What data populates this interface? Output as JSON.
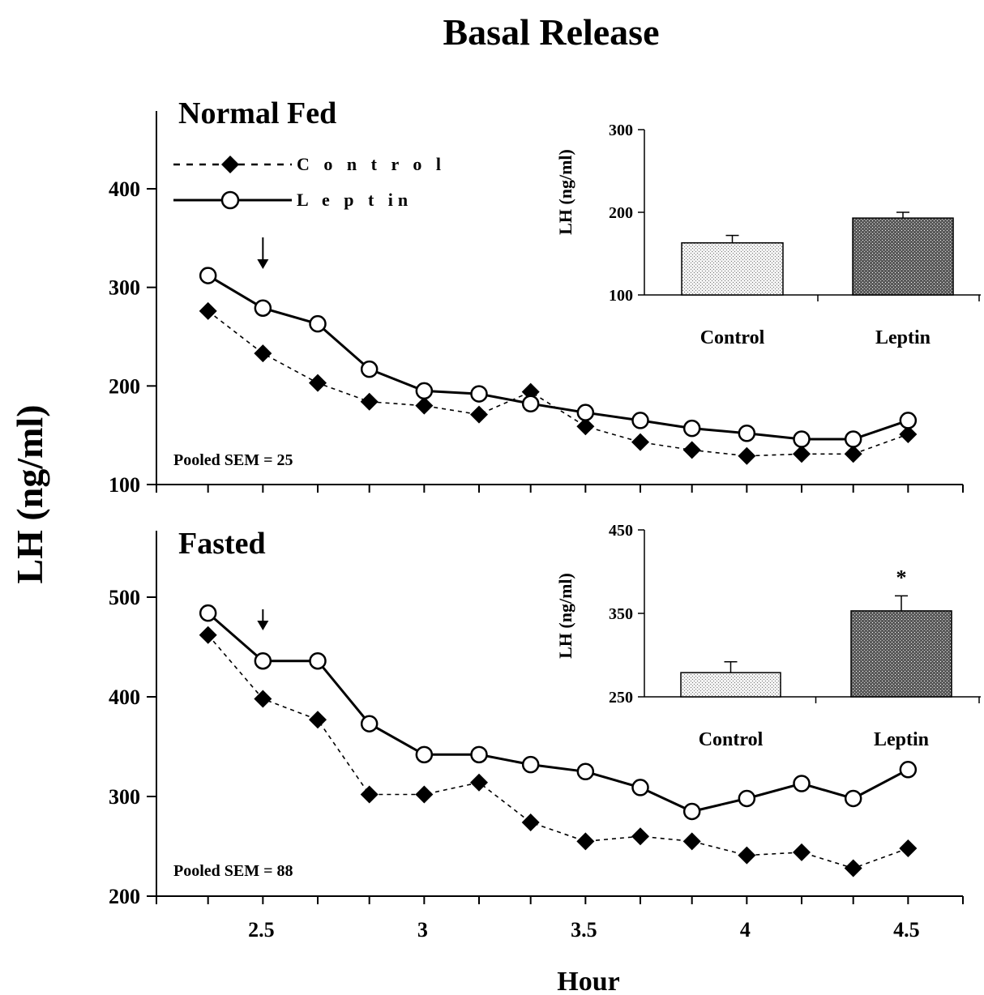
{
  "title": "Basal Release",
  "ylabel": "LH (ng/ml)",
  "xlabel": "Hour",
  "chart_data": [
    {
      "type": "line",
      "panel_title": "Normal Fed",
      "x": [
        2.33,
        2.5,
        2.67,
        2.83,
        3.0,
        3.17,
        3.33,
        3.5,
        3.67,
        3.83,
        4.0,
        4.17,
        4.33,
        4.5
      ],
      "xlim": [
        2.17,
        4.67
      ],
      "ylim": [
        100,
        470
      ],
      "yticks": [
        100,
        200,
        300,
        400
      ],
      "xticks": [
        2.5,
        3,
        3.5,
        4,
        4.5
      ],
      "xtick_labels": [
        "2.5",
        "3",
        "3.5",
        "4",
        "4.5"
      ],
      "series": [
        {
          "name": "C o n t r o l",
          "marker": "filled-diamond",
          "line": "dashed",
          "values": [
            276,
            233,
            203,
            184,
            180,
            171,
            194,
            159,
            143,
            135,
            129,
            131,
            131,
            151
          ]
        },
        {
          "name": "L e p t in",
          "marker": "open-circle",
          "line": "solid",
          "values": [
            312,
            279,
            263,
            217,
            195,
            192,
            182,
            173,
            165,
            157,
            152,
            146,
            146,
            165
          ]
        }
      ],
      "annotation": "Pooled SEM = 25",
      "arrow_x": 2.5,
      "legend": "top-left",
      "grid": false,
      "inset": {
        "type": "bar",
        "categories": [
          "Control",
          "Leptin"
        ],
        "values": [
          163,
          193
        ],
        "errors": [
          9,
          7
        ],
        "ylabel": "LH (ng/ml)",
        "ylim": [
          100,
          300
        ],
        "yticks": [
          100,
          200,
          300
        ],
        "fills": [
          "light-stipple",
          "dark-crosshatch"
        ]
      }
    },
    {
      "type": "line",
      "panel_title": "Fasted",
      "x": [
        2.33,
        2.5,
        2.67,
        2.83,
        3.0,
        3.17,
        3.33,
        3.5,
        3.67,
        3.83,
        4.0,
        4.17,
        4.33,
        4.5
      ],
      "xlim": [
        2.17,
        4.67
      ],
      "ylim": [
        200,
        560
      ],
      "yticks": [
        200,
        300,
        400,
        500
      ],
      "xticks": [
        2.5,
        3,
        3.5,
        4,
        4.5
      ],
      "xtick_labels": [
        "2.5",
        "3",
        "3.5",
        "4",
        "4.5"
      ],
      "series": [
        {
          "name": "C o n t r o l",
          "marker": "filled-diamond",
          "line": "dashed",
          "values": [
            462,
            398,
            377,
            302,
            302,
            314,
            274,
            255,
            260,
            255,
            241,
            244,
            228,
            248
          ]
        },
        {
          "name": "L e p t in",
          "marker": "open-circle",
          "line": "solid",
          "values": [
            484,
            436,
            436,
            373,
            342,
            342,
            332,
            325,
            309,
            285,
            298,
            313,
            298,
            327
          ]
        }
      ],
      "annotation": "Pooled SEM = 88",
      "arrow_x": 2.5,
      "grid": false,
      "inset": {
        "type": "bar",
        "categories": [
          "Control",
          "Leptin"
        ],
        "values": [
          279,
          353
        ],
        "errors": [
          13,
          18
        ],
        "ylabel": "LH (ng/ml)",
        "ylim": [
          250,
          450
        ],
        "yticks": [
          250,
          350,
          450
        ],
        "fills": [
          "light-stipple",
          "dark-crosshatch"
        ],
        "significance": [
          "",
          "*"
        ]
      }
    }
  ]
}
